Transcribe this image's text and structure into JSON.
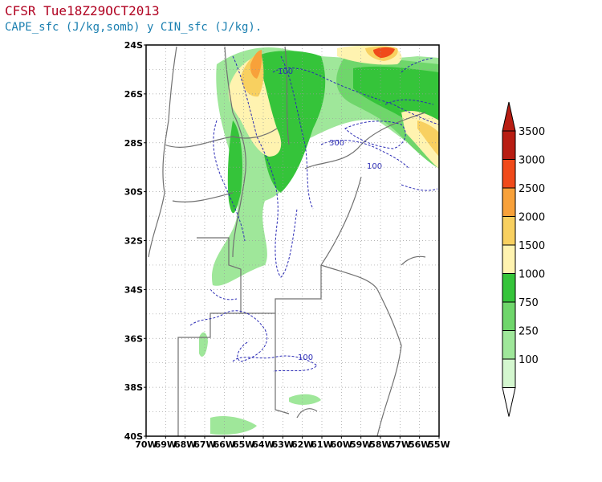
{
  "header": {
    "title": "CFSR Tue18Z29OCT2013",
    "subtitle": "CAPE_sfc (J/kg,somb) y CIN_sfc (J/kg)."
  },
  "map": {
    "lat_range": [
      -40,
      -24
    ],
    "lon_range": [
      -70,
      -55
    ],
    "lat_labels": [
      "24S",
      "26S",
      "28S",
      "30S",
      "32S",
      "34S",
      "36S",
      "38S",
      "40S"
    ],
    "lon_labels": [
      "70W",
      "69W",
      "68W",
      "67W",
      "66W",
      "65W",
      "64W",
      "63W",
      "62W",
      "61W",
      "60W",
      "59W",
      "58W",
      "57W",
      "56W",
      "55W"
    ],
    "grid": "dotted",
    "contour_labels": [
      "100",
      "300",
      "100",
      "100"
    ],
    "contour_color": "#2b2bb5",
    "border_color": "#707070"
  },
  "colorbar": {
    "labels": [
      "3500",
      "3000",
      "2500",
      "2000",
      "1500",
      "1000",
      "750",
      "250",
      "100"
    ],
    "colors": [
      "#b81d13",
      "#f04a1a",
      "#f8a13a",
      "#f8d060",
      "#fff3b0",
      "#35c43a",
      "#6fd66b",
      "#9fe79a",
      "#d4f7cf"
    ]
  }
}
